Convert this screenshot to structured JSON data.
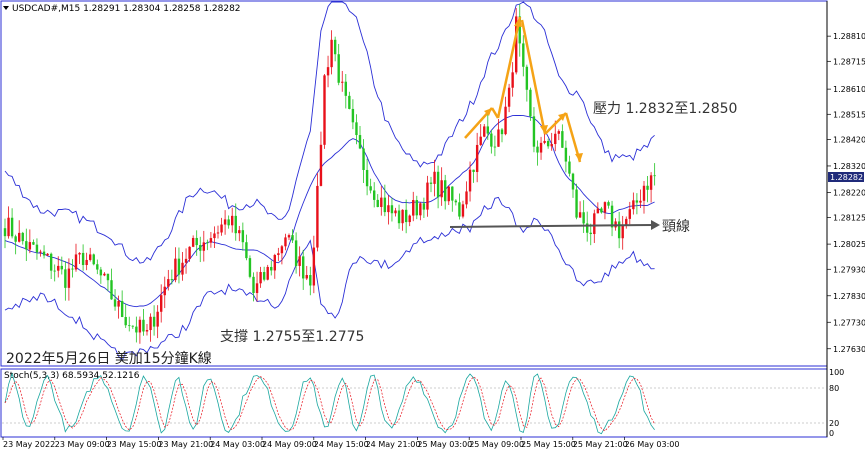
{
  "chart_data": {
    "type": "candlestick",
    "symbol_line": "USDCAD#,M15  1.28291 1.28304 1.28258 1.28282",
    "title": "2022年5月26日 美加15分鐘K線",
    "y_ticks": [
      "1.28810",
      "1.28715",
      "1.28610",
      "1.28515",
      "1.28420",
      "1.28320",
      "1.28220",
      "1.28125",
      "1.28025",
      "1.27930",
      "1.27830",
      "1.27730",
      "1.27630"
    ],
    "ylim": [
      1.2758,
      1.2892
    ],
    "current_price": "1.28282",
    "x_ticks": [
      "23 May 2022",
      "23 May 09:00",
      "23 May 15:00",
      "23 May 21:00",
      "24 May 03:00",
      "24 May 09:00",
      "24 May 15:00",
      "24 May 21:00",
      "25 May 03:00",
      "25 May 09:00",
      "25 May 15:00",
      "25 May 21:00",
      "26 May 03:00"
    ],
    "series_colors": {
      "bull": "#e8101a",
      "bear": "#23c423",
      "band": "#2b2fd6",
      "arrow": "#f5a316",
      "neckline": "#555555"
    },
    "close_path": [
      [
        0,
        1.281
      ],
      [
        6,
        1.2802
      ],
      [
        12,
        1.2796
      ],
      [
        17,
        1.279
      ],
      [
        22,
        1.2798
      ],
      [
        27,
        1.279
      ],
      [
        32,
        1.2778
      ],
      [
        36,
        1.2772
      ],
      [
        40,
        1.2768
      ],
      [
        46,
        1.279
      ],
      [
        52,
        1.28
      ],
      [
        58,
        1.2806
      ],
      [
        63,
        1.2812
      ],
      [
        67,
        1.2802
      ],
      [
        70,
        1.2784
      ],
      [
        74,
        1.2792
      ],
      [
        79,
        1.2806
      ],
      [
        83,
        1.2795
      ],
      [
        86,
        1.279
      ],
      [
        88,
        1.282
      ],
      [
        90,
        1.2865
      ],
      [
        92,
        1.288
      ],
      [
        95,
        1.286
      ],
      [
        99,
        1.284
      ],
      [
        103,
        1.2825
      ],
      [
        108,
        1.2815
      ],
      [
        112,
        1.2812
      ],
      [
        117,
        1.2818
      ],
      [
        121,
        1.2826
      ],
      [
        125,
        1.282
      ],
      [
        128,
        1.2815
      ],
      [
        131,
        1.283
      ],
      [
        135,
        1.2845
      ],
      [
        139,
        1.2842
      ],
      [
        142,
        1.2858
      ],
      [
        144,
        1.2885
      ],
      [
        146,
        1.2865
      ],
      [
        149,
        1.284
      ],
      [
        152,
        1.2838
      ],
      [
        155,
        1.2845
      ],
      [
        158,
        1.2835
      ],
      [
        161,
        1.2814
      ],
      [
        165,
        1.2808
      ],
      [
        169,
        1.2815
      ],
      [
        173,
        1.2808
      ],
      [
        177,
        1.2815
      ],
      [
        180,
        1.2825
      ],
      [
        183,
        1.2828
      ]
    ],
    "band_width_path": [
      [
        0,
        0.0026
      ],
      [
        10,
        0.0016
      ],
      [
        22,
        0.002
      ],
      [
        30,
        0.0022
      ],
      [
        40,
        0.0016
      ],
      [
        52,
        0.0024
      ],
      [
        63,
        0.0016
      ],
      [
        70,
        0.0018
      ],
      [
        80,
        0.0014
      ],
      [
        86,
        0.002
      ],
      [
        89,
        0.005
      ],
      [
        93,
        0.0062
      ],
      [
        100,
        0.0042
      ],
      [
        108,
        0.0026
      ],
      [
        116,
        0.0014
      ],
      [
        124,
        0.0016
      ],
      [
        132,
        0.0024
      ],
      [
        140,
        0.003
      ],
      [
        145,
        0.0044
      ],
      [
        150,
        0.0038
      ],
      [
        156,
        0.0032
      ],
      [
        162,
        0.0036
      ],
      [
        170,
        0.0022
      ],
      [
        176,
        0.0018
      ],
      [
        183,
        0.0024
      ]
    ],
    "annotations": {
      "resistance": "壓力 1.2832至1.2850",
      "support": "支撐 1.2755至1.2775",
      "neckline": "頸線"
    },
    "stoch": {
      "label": "Stoch(5,3,3) 68.5934 52.1216",
      "levels": [
        "100",
        "80",
        "20",
        "0"
      ]
    }
  }
}
